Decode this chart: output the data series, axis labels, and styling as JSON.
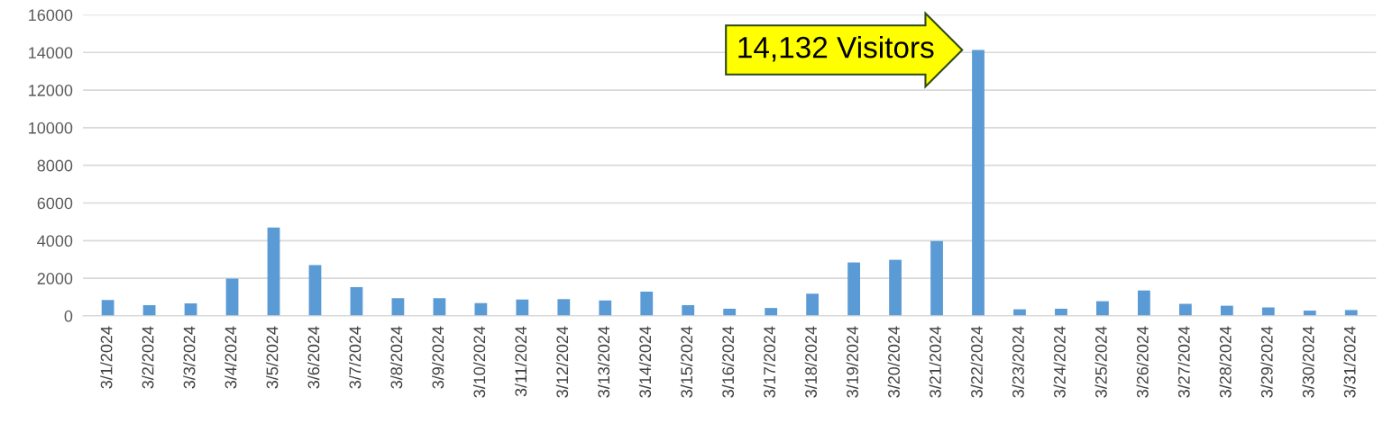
{
  "chart_data": {
    "type": "bar",
    "categories": [
      "3/1/2024",
      "3/2/2024",
      "3/3/2024",
      "3/4/2024",
      "3/5/2024",
      "3/6/2024",
      "3/7/2024",
      "3/8/2024",
      "3/9/2024",
      "3/10/2024",
      "3/11/2024",
      "3/12/2024",
      "3/13/2024",
      "3/14/2024",
      "3/15/2024",
      "3/16/2024",
      "3/17/2024",
      "3/18/2024",
      "3/19/2024",
      "3/20/2024",
      "3/21/2024",
      "3/22/2024",
      "3/23/2024",
      "3/24/2024",
      "3/25/2024",
      "3/26/2024",
      "3/27/2024",
      "3/28/2024",
      "3/29/2024",
      "3/30/2024",
      "3/31/2024"
    ],
    "values": [
      850,
      570,
      660,
      1980,
      4700,
      2700,
      1530,
      940,
      940,
      680,
      870,
      890,
      820,
      1290,
      570,
      380,
      420,
      1180,
      2840,
      2980,
      3980,
      14132,
      350,
      380,
      780,
      1350,
      640,
      540,
      450,
      280,
      310
    ],
    "color": "#5b9bd5",
    "ylim": [
      0,
      16000
    ],
    "yticks": [
      0,
      2000,
      4000,
      6000,
      8000,
      10000,
      12000,
      14000,
      16000
    ],
    "grid": "y",
    "annotations": [
      {
        "text": "14,132 Visitors",
        "x": "3/22/2024",
        "y": 14132
      }
    ]
  }
}
